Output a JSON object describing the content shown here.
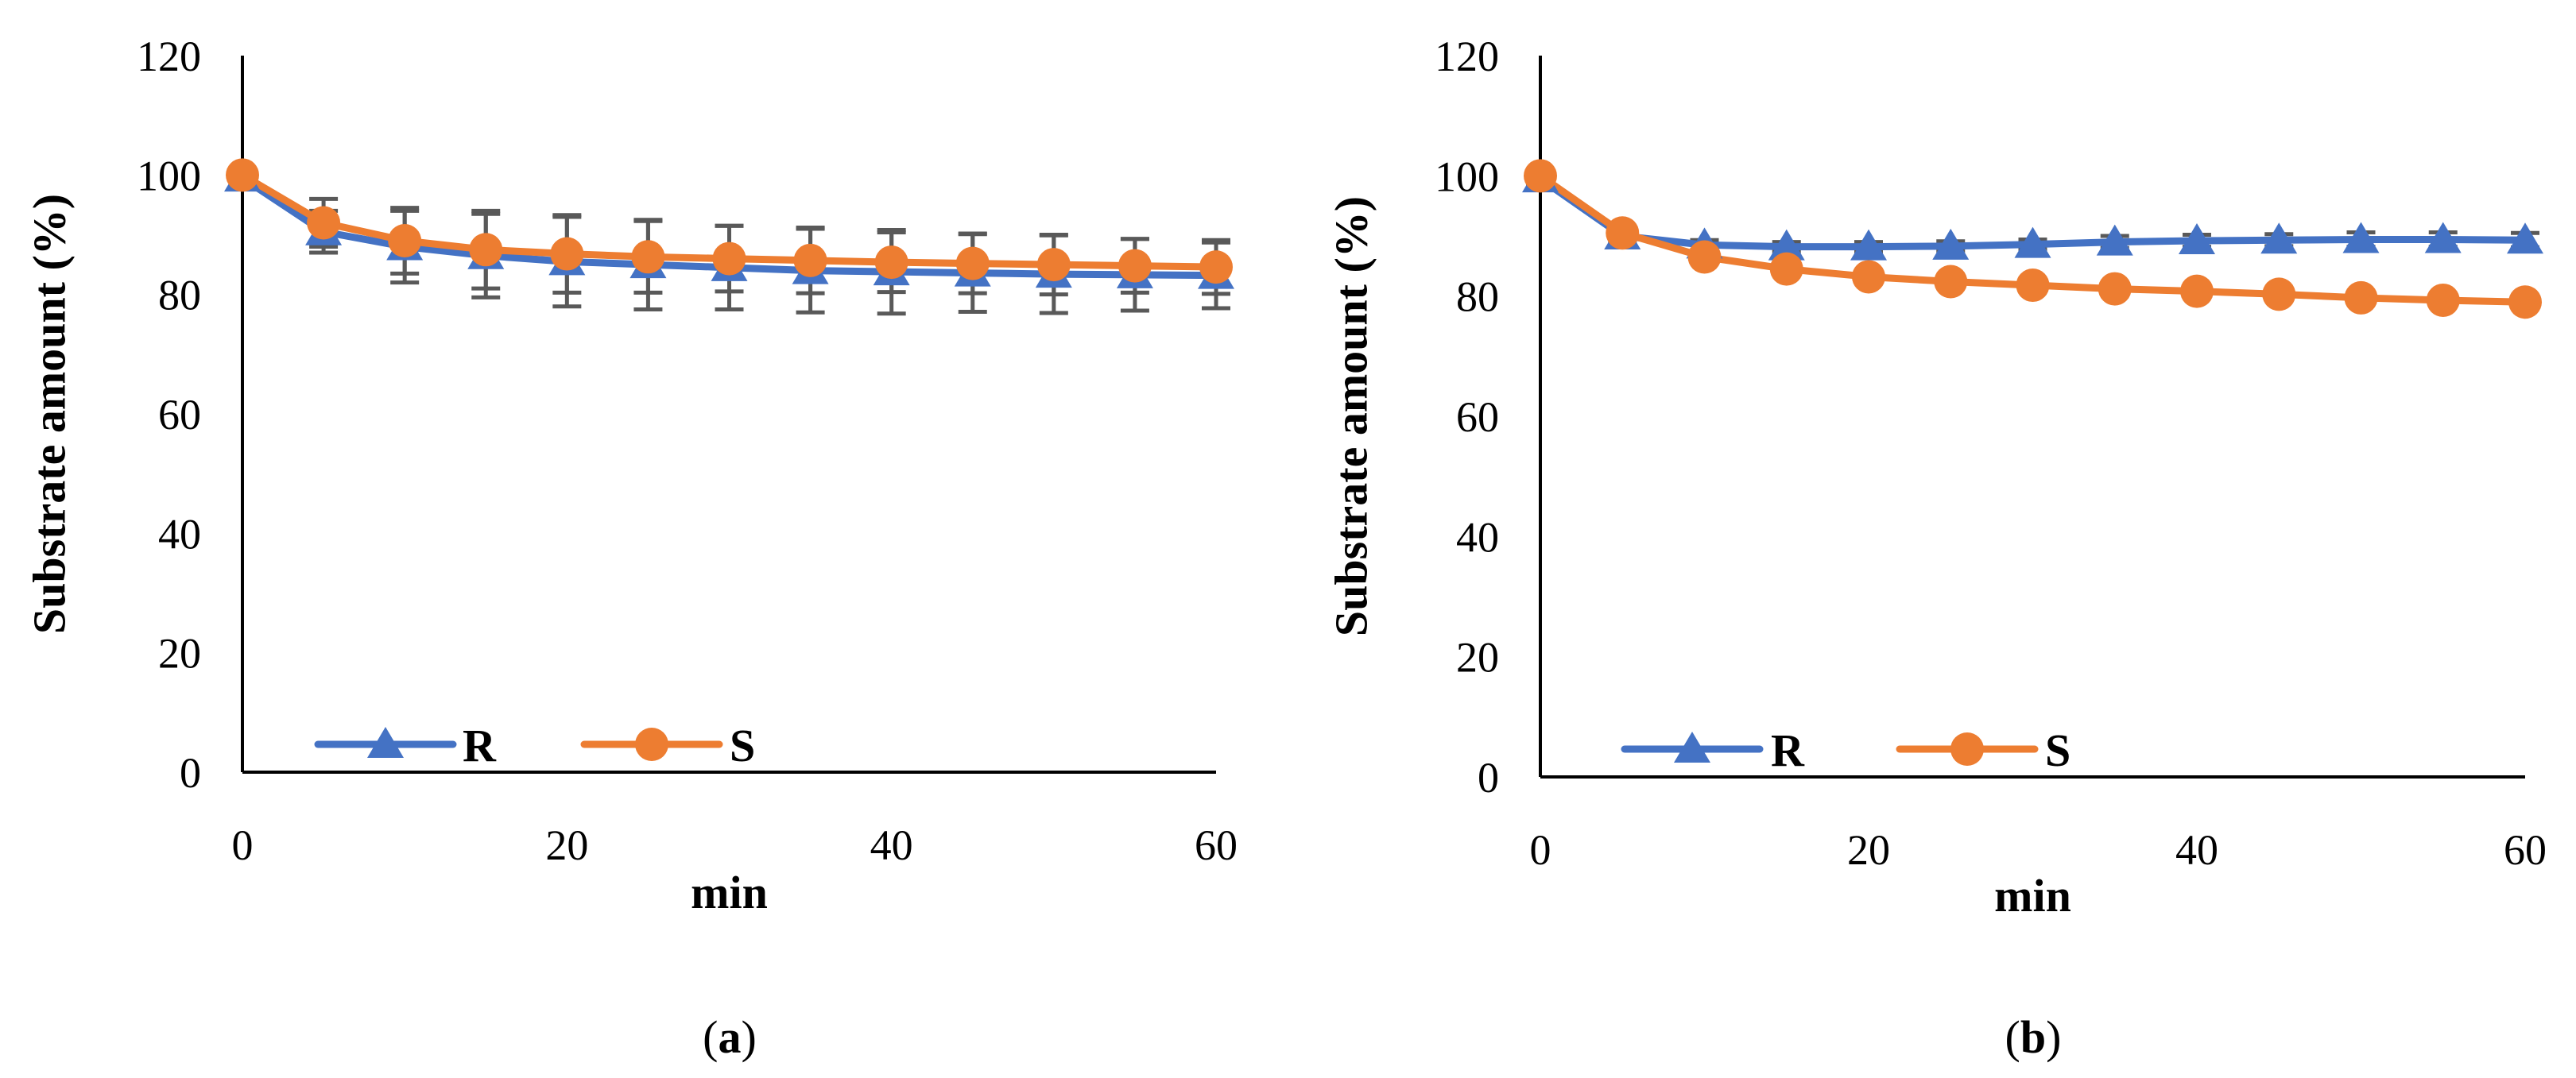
{
  "chart_data": [
    {
      "type": "line",
      "panel_label": "a",
      "xlabel": "min",
      "ylabel": "Substrate amount (%)",
      "xlim": [
        0,
        60
      ],
      "ylim": [
        0,
        120
      ],
      "x_ticks": [
        0,
        20,
        40,
        60
      ],
      "y_ticks": [
        0,
        20,
        40,
        60,
        80,
        100,
        120
      ],
      "grid": false,
      "legend": "bottom-left",
      "x": [
        0,
        5,
        10,
        15,
        20,
        25,
        30,
        35,
        40,
        45,
        50,
        55,
        60
      ],
      "series": [
        {
          "name": "R",
          "color": "#4472C4",
          "marker": "triangle",
          "values": [
            99.5,
            90.5,
            88,
            86.5,
            85.5,
            85,
            84.5,
            84,
            83.8,
            83.6,
            83.4,
            83.3,
            83.2
          ],
          "error": [
            1.5,
            3.5,
            6,
            7,
            7.5,
            7.5,
            7,
            7,
            7,
            6.5,
            6.5,
            6,
            5.5
          ]
        },
        {
          "name": "S",
          "color": "#ED7D31",
          "marker": "circle",
          "values": [
            100,
            92,
            89,
            87.5,
            86.8,
            86.3,
            86,
            85.7,
            85.4,
            85.2,
            85,
            84.8,
            84.6
          ],
          "error": [
            0,
            4,
            5.5,
            6.5,
            6.5,
            6,
            5.5,
            5.5,
            5,
            5,
            5,
            4.5,
            4.5
          ]
        }
      ]
    },
    {
      "type": "line",
      "panel_label": "b",
      "xlabel": "min",
      "ylabel": "Substrate amount (%)",
      "xlim": [
        0,
        60
      ],
      "ylim": [
        0,
        120
      ],
      "x_ticks": [
        0,
        20,
        40,
        60
      ],
      "y_ticks": [
        0,
        20,
        40,
        60,
        80,
        100,
        120
      ],
      "grid": false,
      "legend": "bottom-left",
      "x": [
        0,
        5,
        10,
        15,
        20,
        25,
        30,
        35,
        40,
        45,
        50,
        55,
        60
      ],
      "series": [
        {
          "name": "R",
          "color": "#4472C4",
          "marker": "triangle",
          "values": [
            99.5,
            90,
            88.5,
            88.2,
            88.2,
            88.3,
            88.6,
            89,
            89.2,
            89.3,
            89.4,
            89.4,
            89.3
          ],
          "error": [
            1,
            1,
            0.8,
            0.8,
            0.8,
            0.8,
            0.8,
            1,
            1,
            1,
            1.2,
            1.2,
            1.2
          ]
        },
        {
          "name": "S",
          "color": "#ED7D31",
          "marker": "circle",
          "values": [
            100,
            90.5,
            86.5,
            84.5,
            83.2,
            82.4,
            81.8,
            81.2,
            80.8,
            80.3,
            79.7,
            79.3,
            79
          ],
          "error": [
            0,
            0,
            0,
            0,
            0,
            0,
            0,
            0,
            0,
            0,
            0,
            0,
            0
          ]
        }
      ]
    }
  ]
}
